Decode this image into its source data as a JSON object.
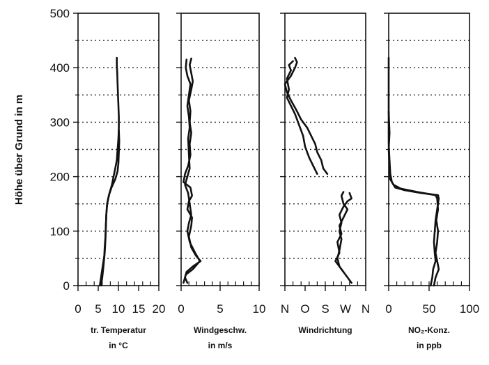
{
  "chart_data": {
    "type": "line",
    "y_axis": {
      "label": "Höhe über Grund in m",
      "range": [
        0,
        500
      ],
      "ticks": [
        0,
        100,
        200,
        300,
        400,
        500
      ],
      "dotted_gridlines": [
        50,
        100,
        150,
        200,
        250,
        300,
        350,
        400,
        450
      ]
    },
    "panels": [
      {
        "id": "temperature",
        "caption_lines": [
          "tr. Temperatur",
          "in °C"
        ],
        "x_range": [
          0,
          20
        ],
        "x_ticks": [
          0,
          5,
          10,
          15,
          20
        ],
        "x_tick_labels": [
          "0",
          "5",
          "10",
          "15",
          "20"
        ],
        "series": [
          {
            "points": [
              [
                5.4,
                0
              ],
              [
                5.6,
                10
              ],
              [
                5.9,
                25
              ],
              [
                6.2,
                40
              ],
              [
                6.5,
                55
              ],
              [
                6.6,
                70
              ],
              [
                6.8,
                90
              ],
              [
                6.9,
                110
              ],
              [
                7.0,
                130
              ],
              [
                7.2,
                150
              ],
              [
                7.8,
                170
              ],
              [
                8.4,
                185
              ],
              [
                8.8,
                200
              ],
              [
                9.2,
                215
              ],
              [
                9.6,
                230
              ],
              [
                9.8,
                250
              ],
              [
                10.0,
                270
              ],
              [
                10.1,
                290
              ],
              [
                10.1,
                310
              ],
              [
                10.0,
                330
              ],
              [
                9.9,
                350
              ],
              [
                9.8,
                370
              ],
              [
                9.7,
                390
              ],
              [
                9.6,
                405
              ],
              [
                9.6,
                418
              ]
            ]
          },
          {
            "points": [
              [
                5.7,
                0
              ],
              [
                6.0,
                15
              ],
              [
                6.3,
                35
              ],
              [
                6.6,
                60
              ],
              [
                6.8,
                85
              ],
              [
                6.9,
                110
              ],
              [
                7.0,
                130
              ],
              [
                7.2,
                150
              ],
              [
                7.6,
                165
              ],
              [
                8.3,
                180
              ],
              [
                9.2,
                195
              ],
              [
                9.8,
                210
              ],
              [
                10.0,
                225
              ],
              [
                10.1,
                245
              ],
              [
                10.2,
                265
              ],
              [
                10.1,
                285
              ]
            ]
          }
        ]
      },
      {
        "id": "wind_speed",
        "caption_lines": [
          "Windgeschw.",
          "in m/s"
        ],
        "x_range": [
          0,
          10
        ],
        "x_ticks": [
          0,
          5,
          10
        ],
        "x_tick_labels": [
          "0",
          "5",
          "10"
        ],
        "series": [
          {
            "points": [
              [
                0.3,
                5
              ],
              [
                0.6,
                20
              ],
              [
                1.5,
                30
              ],
              [
                2.4,
                45
              ],
              [
                1.8,
                60
              ],
              [
                1.1,
                80
              ],
              [
                0.8,
                100
              ],
              [
                1.0,
                115
              ],
              [
                1.3,
                130
              ],
              [
                1.1,
                150
              ],
              [
                0.9,
                170
              ],
              [
                0.5,
                185
              ],
              [
                0.8,
                200
              ],
              [
                1.1,
                215
              ],
              [
                1.0,
                240
              ],
              [
                0.9,
                270
              ],
              [
                1.1,
                290
              ],
              [
                1.0,
                310
              ],
              [
                0.8,
                330
              ],
              [
                1.0,
                350
              ],
              [
                1.2,
                370
              ],
              [
                0.8,
                385
              ],
              [
                0.6,
                400
              ],
              [
                0.7,
                415
              ]
            ]
          },
          {
            "points": [
              [
                0.8,
                5
              ],
              [
                0.5,
                15
              ],
              [
                0.7,
                25
              ],
              [
                1.5,
                35
              ],
              [
                2.5,
                45
              ],
              [
                1.9,
                55
              ],
              [
                1.3,
                70
              ],
              [
                1.0,
                90
              ],
              [
                1.3,
                110
              ],
              [
                1.4,
                125
              ],
              [
                0.8,
                140
              ],
              [
                1.0,
                155
              ],
              [
                1.4,
                165
              ],
              [
                1.2,
                180
              ],
              [
                0.3,
                190
              ],
              [
                0.5,
                205
              ],
              [
                0.9,
                220
              ],
              [
                1.2,
                240
              ],
              [
                1.1,
                260
              ],
              [
                1.3,
                280
              ],
              [
                1.1,
                300
              ],
              [
                1.2,
                320
              ],
              [
                1.0,
                340
              ],
              [
                1.3,
                360
              ],
              [
                1.5,
                375
              ],
              [
                1.3,
                390
              ],
              [
                1.1,
                405
              ],
              [
                1.3,
                417
              ]
            ]
          }
        ]
      },
      {
        "id": "wind_direction",
        "caption_lines": [
          "Windrichtung"
        ],
        "x_range": [
          0,
          4
        ],
        "x_ticks": [
          0,
          1,
          2,
          3,
          4
        ],
        "x_tick_labels": [
          "N",
          "O",
          "S",
          "W",
          "N"
        ],
        "series": [
          {
            "points": [
              [
                3.3,
                5
              ],
              [
                3.0,
                20
              ],
              [
                2.7,
                35
              ],
              [
                2.6,
                50
              ],
              [
                2.7,
                65
              ],
              [
                2.8,
                85
              ],
              [
                2.7,
                100
              ],
              [
                2.8,
                115
              ],
              [
                2.7,
                130
              ],
              [
                2.9,
                145
              ],
              [
                3.1,
                155
              ],
              [
                3.3,
                160
              ],
              [
                3.2,
                170
              ]
            ]
          },
          {
            "points": [
              [
                2.9,
                172
              ],
              [
                2.8,
                165
              ],
              [
                2.9,
                150
              ],
              [
                3.1,
                140
              ],
              [
                2.9,
                125
              ],
              [
                2.7,
                110
              ],
              [
                2.8,
                95
              ],
              [
                2.6,
                80
              ],
              [
                2.7,
                60
              ],
              [
                2.5,
                45
              ],
              [
                2.7,
                35
              ],
              [
                2.9,
                25
              ]
            ]
          },
          {
            "points": [
              [
                2.1,
                205
              ],
              [
                1.9,
                215
              ],
              [
                1.8,
                230
              ],
              [
                1.6,
                245
              ],
              [
                1.5,
                260
              ],
              [
                1.3,
                275
              ],
              [
                1.1,
                290
              ],
              [
                0.8,
                305
              ],
              [
                0.6,
                320
              ],
              [
                0.3,
                340
              ],
              [
                0.1,
                355
              ],
              [
                0.0,
                370
              ],
              [
                0.3,
                385
              ],
              [
                0.5,
                400
              ],
              [
                0.6,
                410
              ],
              [
                0.5,
                418
              ]
            ]
          },
          {
            "points": [
              [
                1.6,
                205
              ],
              [
                1.4,
                220
              ],
              [
                1.2,
                235
              ],
              [
                1.0,
                255
              ],
              [
                0.9,
                275
              ],
              [
                0.7,
                295
              ],
              [
                0.5,
                315
              ],
              [
                0.3,
                330
              ],
              [
                0.1,
                345
              ],
              [
                0.2,
                360
              ],
              [
                0.1,
                380
              ],
              [
                0.3,
                395
              ],
              [
                0.2,
                405
              ],
              [
                0.4,
                412
              ]
            ]
          }
        ]
      },
      {
        "id": "no2",
        "caption_lines": [
          "NO₂-Konz.",
          "in ppb"
        ],
        "x_range": [
          0,
          100
        ],
        "x_ticks": [
          0,
          50,
          100
        ],
        "x_tick_labels": [
          "0",
          "50",
          "100"
        ],
        "series": [
          {
            "points": [
              [
                52,
                0
              ],
              [
                54,
                15
              ],
              [
                55,
                30
              ],
              [
                58,
                45
              ],
              [
                57,
                60
              ],
              [
                56,
                80
              ],
              [
                57,
                100
              ],
              [
                58,
                120
              ],
              [
                60,
                140
              ],
              [
                62,
                160
              ],
              [
                61,
                166
              ],
              [
                40,
                170
              ],
              [
                20,
                175
              ],
              [
                8,
                180
              ],
              [
                4,
                190
              ],
              [
                2,
                205
              ],
              [
                1,
                230
              ],
              [
                0,
                260
              ],
              [
                0,
                300
              ],
              [
                0,
                340
              ],
              [
                0,
                380
              ],
              [
                0,
                418
              ]
            ]
          },
          {
            "points": [
              [
                56,
                0
              ],
              [
                58,
                15
              ],
              [
                62,
                30
              ],
              [
                60,
                45
              ],
              [
                58,
                60
              ],
              [
                60,
                80
              ],
              [
                61,
                100
              ],
              [
                59,
                120
              ],
              [
                61,
                140
              ],
              [
                60,
                160
              ],
              [
                58,
                166
              ],
              [
                35,
                172
              ],
              [
                15,
                178
              ],
              [
                6,
                185
              ],
              [
                2,
                195
              ],
              [
                1,
                220
              ],
              [
                0,
                250
              ],
              [
                1,
                280
              ],
              [
                0,
                320
              ]
            ]
          }
        ]
      }
    ]
  }
}
